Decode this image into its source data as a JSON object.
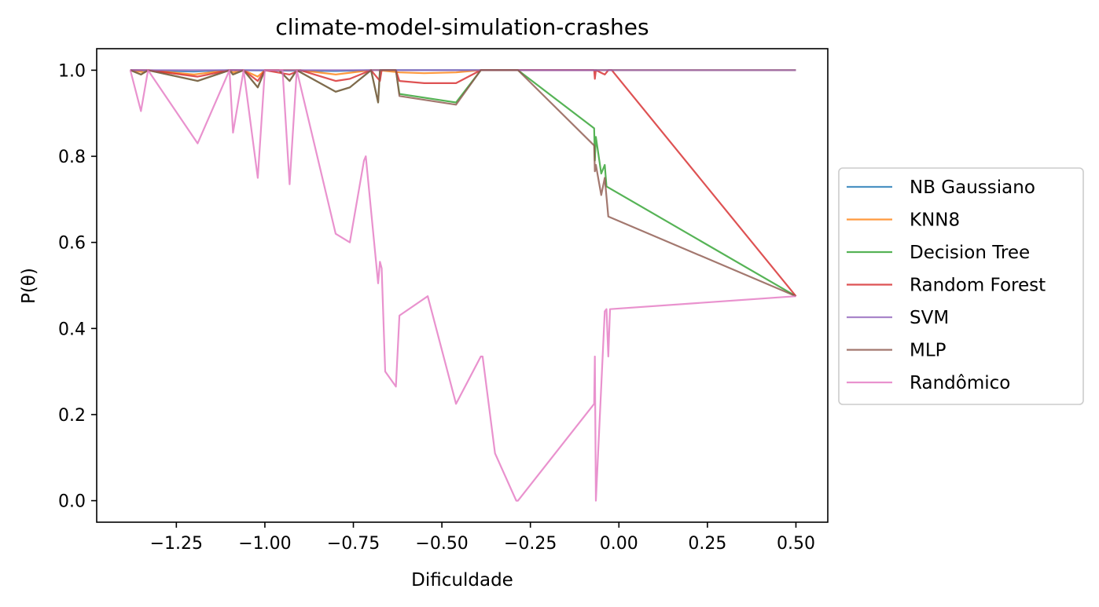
{
  "chart_data": {
    "type": "line",
    "title": "climate-model-simulation-crashes",
    "xlabel": "Dificuldade",
    "ylabel": "P(θ)",
    "xlim": [
      -1.475,
      0.59
    ],
    "ylim": [
      -0.05,
      1.05
    ],
    "xticks": [
      -1.25,
      -1.0,
      -0.75,
      -0.5,
      -0.25,
      0.0,
      0.25,
      0.5
    ],
    "xtick_labels": [
      "−1.25",
      "−1.00",
      "−0.75",
      "−0.50",
      "−0.25",
      "0.00",
      "0.25",
      "0.50"
    ],
    "yticks": [
      0.0,
      0.2,
      0.4,
      0.6,
      0.8,
      1.0
    ],
    "ytick_labels": [
      "0.0",
      "0.2",
      "0.4",
      "0.6",
      "0.8",
      "1.0"
    ],
    "grid": false,
    "legend_position": "right, outside plot area",
    "series": [
      {
        "name": "NB Gaussiano",
        "color": "#1f77b4",
        "points": [
          [
            -1.38,
            1.0
          ],
          [
            -1.2,
            0.997
          ],
          [
            -1.1,
            1.0
          ],
          [
            -0.8,
            0.998
          ],
          [
            -0.7,
            1.0
          ],
          [
            -0.4,
            1.0
          ],
          [
            0.5,
            1.0
          ]
        ]
      },
      {
        "name": "KNN8",
        "color": "#ff7f0e",
        "points": [
          [
            -1.38,
            1.0
          ],
          [
            -1.34,
            0.995
          ],
          [
            -1.33,
            1.0
          ],
          [
            -1.2,
            0.99
          ],
          [
            -1.1,
            1.0
          ],
          [
            -1.09,
            0.995
          ],
          [
            -1.06,
            1.0
          ],
          [
            -1.02,
            0.985
          ],
          [
            -1.0,
            1.0
          ],
          [
            -0.92,
            1.0
          ],
          [
            -0.9,
            1.0
          ],
          [
            -0.8,
            0.99
          ],
          [
            -0.7,
            1.0
          ],
          [
            -0.68,
            1.0
          ],
          [
            -0.62,
            0.995
          ],
          [
            -0.55,
            0.993
          ],
          [
            -0.46,
            0.995
          ],
          [
            -0.39,
            1.0
          ],
          [
            0.0,
            1.0
          ],
          [
            0.5,
            1.0
          ]
        ]
      },
      {
        "name": "Decision Tree",
        "color": "#2ca02c",
        "points": [
          [
            -1.38,
            1.0
          ],
          [
            -1.35,
            0.99
          ],
          [
            -1.33,
            1.0
          ],
          [
            -1.19,
            0.975
          ],
          [
            -1.1,
            1.0
          ],
          [
            -1.09,
            0.99
          ],
          [
            -1.06,
            1.0
          ],
          [
            -1.02,
            0.96
          ],
          [
            -1.0,
            1.0
          ],
          [
            -0.96,
            1.0
          ],
          [
            -0.93,
            0.975
          ],
          [
            -0.91,
            1.0
          ],
          [
            -0.8,
            0.95
          ],
          [
            -0.76,
            0.96
          ],
          [
            -0.7,
            1.0
          ],
          [
            -0.68,
            0.925
          ],
          [
            -0.675,
            1.0
          ],
          [
            -0.63,
            1.0
          ],
          [
            -0.62,
            0.945
          ],
          [
            -0.46,
            0.925
          ],
          [
            -0.39,
            1.0
          ],
          [
            -0.285,
            1.0
          ],
          [
            -0.07,
            0.865
          ],
          [
            -0.068,
            0.79
          ],
          [
            -0.065,
            0.845
          ],
          [
            -0.05,
            0.76
          ],
          [
            -0.04,
            0.78
          ],
          [
            -0.035,
            0.73
          ],
          [
            0.5,
            0.475
          ]
        ]
      },
      {
        "name": "Random Forest",
        "color": "#d62728",
        "points": [
          [
            -1.38,
            1.0
          ],
          [
            -1.33,
            1.0
          ],
          [
            -1.19,
            0.985
          ],
          [
            -1.1,
            1.0
          ],
          [
            -1.06,
            1.0
          ],
          [
            -1.02,
            0.975
          ],
          [
            -1.0,
            1.0
          ],
          [
            -0.93,
            0.99
          ],
          [
            -0.9,
            1.0
          ],
          [
            -0.8,
            0.975
          ],
          [
            -0.76,
            0.98
          ],
          [
            -0.7,
            1.0
          ],
          [
            -0.675,
            0.975
          ],
          [
            -0.67,
            1.0
          ],
          [
            -0.63,
            1.0
          ],
          [
            -0.62,
            0.975
          ],
          [
            -0.55,
            0.97
          ],
          [
            -0.46,
            0.97
          ],
          [
            -0.39,
            1.0
          ],
          [
            -0.07,
            1.0
          ],
          [
            -0.068,
            0.98
          ],
          [
            -0.065,
            1.0
          ],
          [
            -0.04,
            0.99
          ],
          [
            -0.03,
            1.0
          ],
          [
            -0.02,
            1.0
          ],
          [
            0.5,
            0.475
          ]
        ]
      },
      {
        "name": "SVM",
        "color": "#9467bd",
        "points": [
          [
            -1.38,
            1.0
          ],
          [
            0.5,
            1.0
          ]
        ]
      },
      {
        "name": "MLP",
        "color": "#8c564b",
        "points": [
          [
            -1.38,
            1.0
          ],
          [
            -1.35,
            0.99
          ],
          [
            -1.33,
            1.0
          ],
          [
            -1.19,
            0.975
          ],
          [
            -1.1,
            1.0
          ],
          [
            -1.09,
            0.99
          ],
          [
            -1.06,
            1.0
          ],
          [
            -1.02,
            0.96
          ],
          [
            -1.0,
            1.0
          ],
          [
            -0.96,
            1.0
          ],
          [
            -0.93,
            0.975
          ],
          [
            -0.91,
            1.0
          ],
          [
            -0.8,
            0.95
          ],
          [
            -0.76,
            0.96
          ],
          [
            -0.7,
            1.0
          ],
          [
            -0.68,
            0.925
          ],
          [
            -0.675,
            1.0
          ],
          [
            -0.63,
            1.0
          ],
          [
            -0.62,
            0.94
          ],
          [
            -0.46,
            0.92
          ],
          [
            -0.39,
            1.0
          ],
          [
            -0.285,
            1.0
          ],
          [
            -0.07,
            0.825
          ],
          [
            -0.068,
            0.765
          ],
          [
            -0.065,
            0.78
          ],
          [
            -0.05,
            0.71
          ],
          [
            -0.04,
            0.75
          ],
          [
            -0.03,
            0.66
          ],
          [
            0.5,
            0.475
          ]
        ]
      },
      {
        "name": "Randômico",
        "color": "#e377c2",
        "points": [
          [
            -1.38,
            1.0
          ],
          [
            -1.35,
            0.905
          ],
          [
            -1.33,
            1.0
          ],
          [
            -1.19,
            0.83
          ],
          [
            -1.1,
            1.0
          ],
          [
            -1.09,
            0.855
          ],
          [
            -1.06,
            1.0
          ],
          [
            -1.02,
            0.75
          ],
          [
            -1.0,
            1.0
          ],
          [
            -0.95,
            1.0
          ],
          [
            -0.93,
            0.735
          ],
          [
            -0.91,
            1.0
          ],
          [
            -0.8,
            0.62
          ],
          [
            -0.76,
            0.6
          ],
          [
            -0.72,
            0.79
          ],
          [
            -0.715,
            0.8
          ],
          [
            -0.68,
            0.505
          ],
          [
            -0.675,
            0.555
          ],
          [
            -0.67,
            0.54
          ],
          [
            -0.66,
            0.3
          ],
          [
            -0.63,
            0.265
          ],
          [
            -0.62,
            0.43
          ],
          [
            -0.54,
            0.475
          ],
          [
            -0.46,
            0.225
          ],
          [
            -0.39,
            0.335
          ],
          [
            -0.385,
            0.335
          ],
          [
            -0.35,
            0.11
          ],
          [
            -0.29,
            0.0
          ],
          [
            -0.285,
            0.0
          ],
          [
            -0.07,
            0.225
          ],
          [
            -0.068,
            0.335
          ],
          [
            -0.065,
            0.0
          ],
          [
            -0.04,
            0.44
          ],
          [
            -0.035,
            0.445
          ],
          [
            -0.03,
            0.335
          ],
          [
            -0.025,
            0.445
          ],
          [
            0.5,
            0.475
          ]
        ]
      }
    ]
  }
}
